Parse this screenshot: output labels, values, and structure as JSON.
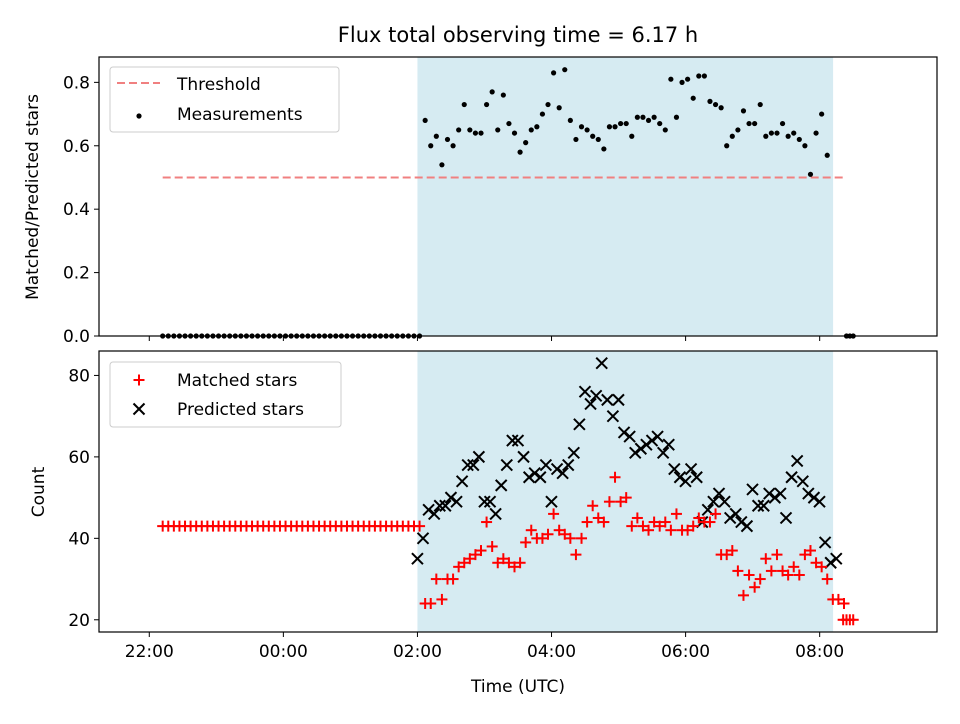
{
  "title": "Flux total observing time = 6.17 h",
  "colors": {
    "shade": "#add8e6",
    "threshold": "#f08080",
    "measurement": "#000000",
    "matched": "#ff0000",
    "predicted": "#000000"
  },
  "chart_data": [
    {
      "type": "scatter",
      "name": "ratio-panel",
      "ylabel": "Matched/Predicted stars",
      "xlabel": "",
      "ylim": [
        0,
        0.88
      ],
      "yticks": [
        0.0,
        0.2,
        0.4,
        0.6,
        0.8
      ],
      "ytick_labels": [
        "0.0",
        "0.2",
        "0.4",
        "0.6",
        "0.8"
      ],
      "x_unit": "hours relative to 00:00 UTC",
      "xlim": [
        -2.75,
        9.75
      ],
      "shaded_span": [
        2.0,
        8.2
      ],
      "legend": {
        "position": "top-left",
        "entries": [
          "Threshold",
          "Measurements"
        ]
      },
      "threshold": {
        "name": "Threshold",
        "y": 0.5,
        "x_range": [
          -1.8,
          8.4
        ]
      },
      "series": [
        {
          "name": "Measurements",
          "marker": "dot",
          "x_start": -1.8,
          "x_step": 0.0833,
          "values": [
            0,
            0,
            0,
            0,
            0,
            0,
            0,
            0,
            0,
            0,
            0,
            0,
            0,
            0,
            0,
            0,
            0,
            0,
            0,
            0,
            0,
            0,
            0,
            0,
            0,
            0,
            0,
            0,
            0,
            0,
            0,
            0,
            0,
            0,
            0,
            0,
            0,
            0,
            0,
            0,
            0,
            0,
            0,
            0,
            0,
            0,
            0,
            0.68,
            0.6,
            0.63,
            0.54,
            0.62,
            0.6,
            0.65,
            0.73,
            0.65,
            0.64,
            0.64,
            0.73,
            0.77,
            0.65,
            0.76,
            0.67,
            0.64,
            0.58,
            0.61,
            0.65,
            0.66,
            0.7,
            0.73,
            0.83,
            0.72,
            0.84,
            0.68,
            0.62,
            0.66,
            0.65,
            0.63,
            0.62,
            0.59,
            0.66,
            0.66,
            0.67,
            0.67,
            0.63,
            0.69,
            0.69,
            0.68,
            0.69,
            0.67,
            0.65,
            0.81,
            0.69,
            0.8,
            0.81,
            0.75,
            0.82,
            0.82,
            0.74,
            0.73,
            0.72,
            0.6,
            0.63,
            0.65,
            0.71,
            0.67,
            0.67,
            0.73,
            0.63,
            0.64,
            0.64,
            0.67,
            0.63,
            0.64,
            0.62,
            0.6,
            0.51,
            0.64,
            0.7,
            0.57
          ],
          "tail_x": [
            8.4,
            8.45,
            8.5
          ],
          "tail_values": [
            0,
            0,
            0
          ]
        }
      ]
    },
    {
      "type": "scatter",
      "name": "count-panel",
      "ylabel": "Count",
      "xlabel": "Time (UTC)",
      "ylim": [
        17,
        86
      ],
      "yticks": [
        20,
        40,
        60,
        80
      ],
      "ytick_labels": [
        "20",
        "40",
        "60",
        "80"
      ],
      "xticks": [
        -2,
        0,
        2,
        4,
        6,
        8
      ],
      "xtick_labels": [
        "22:00",
        "00:00",
        "02:00",
        "04:00",
        "06:00",
        "08:00"
      ],
      "xlim": [
        -2.75,
        9.75
      ],
      "shaded_span": [
        2.0,
        8.2
      ],
      "legend": {
        "position": "top-left",
        "entries": [
          "Matched stars",
          "Predicted stars"
        ]
      },
      "series": [
        {
          "name": "Matched stars",
          "marker": "plus",
          "x_start": -1.8,
          "x_step": 0.0833,
          "values": [
            43,
            43,
            43,
            43,
            43,
            43,
            43,
            43,
            43,
            43,
            43,
            43,
            43,
            43,
            43,
            43,
            43,
            43,
            43,
            43,
            43,
            43,
            43,
            43,
            43,
            43,
            43,
            43,
            43,
            43,
            43,
            43,
            43,
            43,
            43,
            43,
            43,
            43,
            43,
            43,
            43,
            43,
            43,
            43,
            43,
            43,
            43,
            24,
            24,
            30,
            25,
            30,
            30,
            33,
            34,
            35,
            36,
            37,
            44,
            38,
            34,
            35,
            34,
            33,
            34,
            39,
            42,
            40,
            40,
            41,
            46,
            42,
            41,
            40,
            36,
            40,
            44,
            48,
            45,
            44,
            49,
            55,
            49,
            50,
            43,
            45,
            43,
            42,
            44,
            43,
            44,
            42,
            46,
            42,
            42,
            43,
            45,
            44,
            44,
            46,
            36,
            36,
            37,
            32,
            26,
            31,
            28,
            30,
            35,
            32,
            36,
            32,
            31,
            33,
            31,
            36,
            37,
            34,
            33,
            30,
            25,
            25,
            24
          ],
          "tail_x": [
            8.35,
            8.4,
            8.45,
            8.5
          ],
          "tail_values": [
            20,
            20,
            20,
            20
          ]
        },
        {
          "name": "Predicted stars",
          "marker": "x",
          "x_start": 2.0,
          "x_step": 0.0833,
          "values": [
            35,
            40,
            47,
            46,
            48,
            48,
            50,
            49,
            54,
            58,
            58,
            60,
            49,
            49,
            46,
            53,
            58,
            64,
            64,
            60,
            55,
            56,
            55,
            58,
            49,
            57,
            56,
            58,
            61,
            68,
            76,
            73,
            75,
            83,
            74,
            70,
            74,
            66,
            65,
            61,
            62,
            63,
            64,
            65,
            61,
            63,
            57,
            55,
            54,
            57,
            55,
            44,
            47,
            49,
            51,
            49,
            45,
            46,
            44,
            43,
            52,
            48,
            48,
            51,
            50,
            51,
            45,
            55,
            59,
            54,
            51,
            50,
            49,
            39,
            34,
            35
          ]
        }
      ]
    }
  ]
}
